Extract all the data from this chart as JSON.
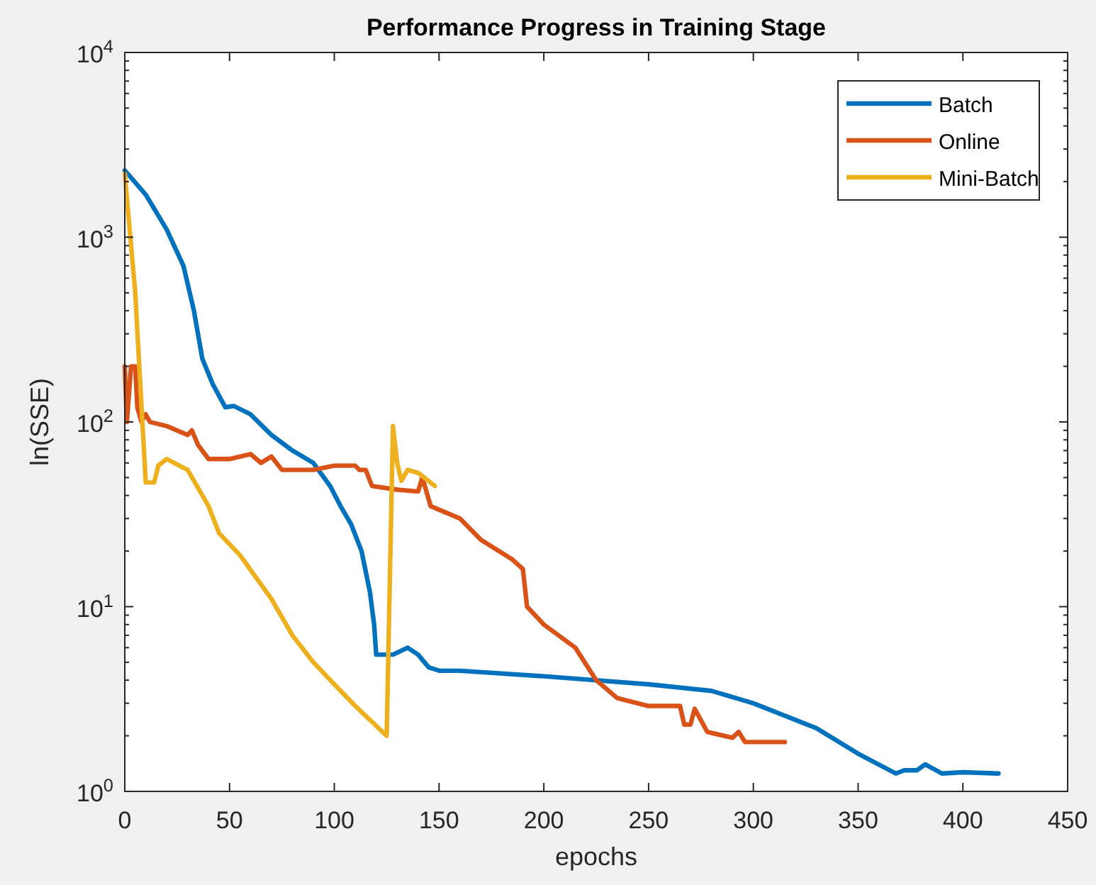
{
  "chart_data": {
    "type": "line",
    "title": "Performance Progress in Training Stage",
    "xlabel": "epochs",
    "ylabel": "ln(SSE)",
    "log": "y",
    "xlim": [
      0,
      450
    ],
    "xticks": [
      0,
      50,
      100,
      150,
      200,
      250,
      300,
      350,
      400,
      450
    ],
    "ylim": [
      1,
      10000
    ],
    "yticks": [
      {
        "value": 1,
        "label": "10$^{0}$"
      },
      {
        "value": 10,
        "label": "10$^{1}$"
      },
      {
        "value": 100,
        "label": "10$^{2}$"
      },
      {
        "value": 1000,
        "label": "10$^{3}$"
      },
      {
        "value": 10000,
        "label": "10$^{4}$"
      }
    ],
    "grid": false,
    "legend": "top right",
    "line_style": "solid",
    "series": [
      {
        "name": "Batch",
        "color": "#0072bd",
        "x": [
          0,
          10,
          20,
          28,
          33,
          37,
          42,
          48,
          52,
          60,
          70,
          80,
          90,
          98,
          103,
          108,
          113,
          117,
          119,
          120,
          128,
          135,
          140,
          145,
          150,
          160,
          200,
          250,
          280,
          300,
          330,
          350,
          368,
          372,
          378,
          382,
          390,
          400,
          417
        ],
        "values": [
          2300,
          1700,
          1100,
          700,
          400,
          220,
          160,
          120,
          122,
          110,
          85,
          70,
          60,
          45,
          35,
          28,
          20,
          12,
          8,
          5.5,
          5.5,
          6,
          5.5,
          4.7,
          4.5,
          4.5,
          4.2,
          3.8,
          3.5,
          3,
          2.2,
          1.6,
          1.25,
          1.3,
          1.3,
          1.4,
          1.25,
          1.27,
          1.25
        ]
      },
      {
        "name": "Online",
        "color": "#d95319",
        "x": [
          0,
          1,
          3,
          5,
          6,
          8,
          10,
          12,
          20,
          30,
          32,
          35,
          40,
          50,
          60,
          65,
          70,
          75,
          90,
          100,
          110,
          112,
          115,
          118,
          130,
          140,
          142,
          146,
          160,
          170,
          185,
          190,
          192,
          200,
          215,
          225,
          235,
          250,
          265,
          267,
          270,
          272,
          278,
          290,
          293,
          296,
          315
        ],
        "values": [
          200,
          100,
          200,
          200,
          120,
          100,
          110,
          100,
          95,
          85,
          90,
          75,
          63,
          63,
          67,
          60,
          65,
          55,
          55,
          58,
          58,
          55,
          55,
          45,
          43,
          42,
          50,
          35,
          30,
          23,
          18,
          16,
          10,
          8,
          6,
          4,
          3.2,
          2.9,
          2.9,
          2.3,
          2.3,
          2.8,
          2.1,
          1.95,
          2.1,
          1.85,
          1.85
        ]
      },
      {
        "name": "Mini-Batch",
        "color": "#edb120",
        "x": [
          0,
          5,
          10,
          14,
          16,
          20,
          30,
          40,
          45,
          55,
          70,
          80,
          90,
          100,
          110,
          125,
          128,
          130,
          132,
          135,
          140,
          148
        ],
        "values": [
          2200,
          500,
          47,
          47,
          58,
          63,
          55,
          35,
          25,
          19,
          11,
          7,
          5,
          3.8,
          2.9,
          2,
          95,
          60,
          48,
          55,
          53,
          45
        ]
      }
    ]
  }
}
